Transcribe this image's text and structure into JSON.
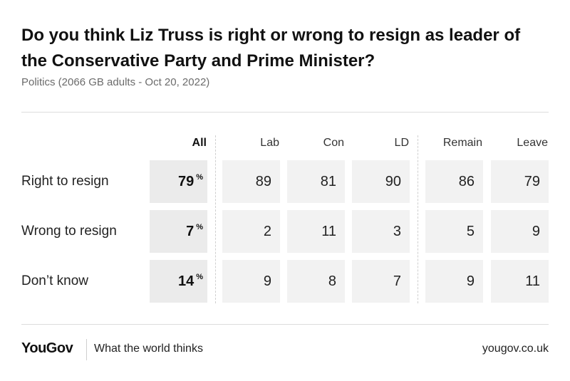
{
  "title": "Do you think Liz Truss is right or wrong to resign as leader of the Conservative Party and Prime Minister?",
  "subtitle": "Politics (2066 GB adults - Oct 20, 2022)",
  "pct_symbol": "%",
  "chart_data": {
    "type": "table",
    "columns": [
      "All",
      "Lab",
      "Con",
      "LD",
      "Remain",
      "Leave"
    ],
    "rows": [
      {
        "label": "Right to resign",
        "values": [
          79,
          89,
          81,
          90,
          86,
          79
        ]
      },
      {
        "label": "Wrong to resign",
        "values": [
          7,
          2,
          11,
          3,
          5,
          9
        ]
      },
      {
        "label": "Don’t know",
        "values": [
          14,
          9,
          8,
          7,
          9,
          11
        ]
      }
    ]
  },
  "footer": {
    "logo": "YouGov",
    "tagline": "What the world thinks",
    "url": "yougov.co.uk"
  }
}
